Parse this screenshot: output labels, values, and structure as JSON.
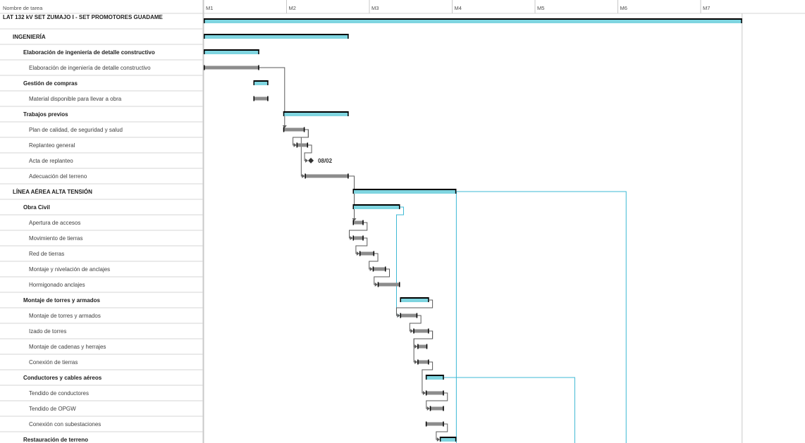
{
  "chart_data": {
    "type": "gantt",
    "task_column_header": "Nombre de tarea",
    "time_unit": "months",
    "time_axis": {
      "ticks": [
        "M1",
        "M2",
        "M3",
        "M4",
        "M5",
        "M6",
        "M7"
      ],
      "range": [
        0,
        6.55
      ]
    },
    "colors": {
      "summary_bar": "#000000",
      "summary_fill": "#7fd5e0",
      "task_bar": "#8c8c8c",
      "link": "#5a5a5a",
      "link_external": "#3cb8d4"
    },
    "tasks": [
      {
        "id": 0,
        "name": "LAT 132 kV SET ZUMAJO I - SET PROMOTORES GUADAME",
        "level": 0,
        "type": "summary",
        "start": 0.0,
        "end": 6.5
      },
      {
        "id": 1,
        "name": "INGENIERÍA",
        "level": 1,
        "type": "summary",
        "start": 0.0,
        "end": 1.75
      },
      {
        "id": 2,
        "name": "Elaboración de ingeniería de detalle constructivo",
        "level": 2,
        "type": "summary",
        "start": 0.0,
        "end": 0.67
      },
      {
        "id": 3,
        "name": "Elaboración de ingeniería de detalle constructivo",
        "level": 3,
        "type": "task",
        "start": 0.0,
        "end": 0.67
      },
      {
        "id": 4,
        "name": "Gestión de compras",
        "level": 2,
        "type": "summary",
        "start": 0.6,
        "end": 0.78
      },
      {
        "id": 5,
        "name": "Material disponible para llevar a obra",
        "level": 3,
        "type": "task",
        "start": 0.6,
        "end": 0.78
      },
      {
        "id": 6,
        "name": "Trabajos previos",
        "level": 2,
        "type": "summary",
        "start": 0.96,
        "end": 1.75
      },
      {
        "id": 7,
        "name": "Plan de calidad, de seguridad y salud",
        "level": 3,
        "type": "task",
        "start": 0.96,
        "end": 1.22
      },
      {
        "id": 8,
        "name": "Replanteo general",
        "level": 3,
        "type": "task",
        "start": 1.12,
        "end": 1.26
      },
      {
        "id": 9,
        "name": "Acta de replanteo",
        "level": 3,
        "type": "milestone",
        "start": 1.26,
        "end": 1.26,
        "label": "08/02"
      },
      {
        "id": 10,
        "name": "Adecuación del terreno",
        "level": 3,
        "type": "task",
        "start": 1.22,
        "end": 1.75
      },
      {
        "id": 11,
        "name": "LÍNEA AÉREA ALTA TENSIÓN",
        "level": 1,
        "type": "summary",
        "start": 1.8,
        "end": 3.05
      },
      {
        "id": 12,
        "name": "Obra Civil",
        "level": 2,
        "type": "summary",
        "start": 1.8,
        "end": 2.37
      },
      {
        "id": 13,
        "name": "Apertura de accesos",
        "level": 3,
        "type": "task",
        "start": 1.8,
        "end": 1.93
      },
      {
        "id": 14,
        "name": "Movimiento de tierras",
        "level": 3,
        "type": "task",
        "start": 1.8,
        "end": 1.93
      },
      {
        "id": 15,
        "name": "Red de tierras",
        "level": 3,
        "type": "task",
        "start": 1.88,
        "end": 2.06
      },
      {
        "id": 16,
        "name": "Montaje y nivelación de anclajes",
        "level": 3,
        "type": "task",
        "start": 2.04,
        "end": 2.2
      },
      {
        "id": 17,
        "name": "Hormigonado anclajes",
        "level": 3,
        "type": "task",
        "start": 2.1,
        "end": 2.37
      },
      {
        "id": 18,
        "name": "Montaje de torres y armados",
        "level": 2,
        "type": "summary",
        "start": 2.37,
        "end": 2.72
      },
      {
        "id": 19,
        "name": "Montaje de torres y armados",
        "level": 3,
        "type": "task",
        "start": 2.37,
        "end": 2.58
      },
      {
        "id": 20,
        "name": "Izado de torres",
        "level": 3,
        "type": "task",
        "start": 2.53,
        "end": 2.72
      },
      {
        "id": 21,
        "name": "Montaje de cadenas y herrajes",
        "level": 3,
        "type": "task",
        "start": 2.58,
        "end": 2.7
      },
      {
        "id": 22,
        "name": "Conexión de tierras",
        "level": 3,
        "type": "task",
        "start": 2.58,
        "end": 2.72
      },
      {
        "id": 23,
        "name": "Conductores y cables aéreos",
        "level": 2,
        "type": "summary",
        "start": 2.68,
        "end": 2.9
      },
      {
        "id": 24,
        "name": "Tendido de conductores",
        "level": 3,
        "type": "task",
        "start": 2.68,
        "end": 2.9
      },
      {
        "id": 25,
        "name": "Tendido de OPGW",
        "level": 3,
        "type": "task",
        "start": 2.73,
        "end": 2.9
      },
      {
        "id": 26,
        "name": "Conexión con subestaciones",
        "level": 3,
        "type": "task",
        "start": 2.68,
        "end": 2.9
      },
      {
        "id": 27,
        "name": "Restauración de terreno",
        "level": 2,
        "type": "summary",
        "start": 2.85,
        "end": 3.05
      }
    ],
    "links": [
      {
        "from": 3,
        "to": 7,
        "style": "link"
      },
      {
        "from": 7,
        "to": 8,
        "style": "link"
      },
      {
        "from": 8,
        "to": 9,
        "style": "link"
      },
      {
        "from": 7,
        "to": 10,
        "style": "link"
      },
      {
        "from": 10,
        "to": 13,
        "style": "link"
      },
      {
        "from": 13,
        "to": 14,
        "style": "link"
      },
      {
        "from": 14,
        "to": 15,
        "style": "link"
      },
      {
        "from": 15,
        "to": 16,
        "style": "link"
      },
      {
        "from": 16,
        "to": 17,
        "style": "link"
      },
      {
        "from": 12,
        "to": 19,
        "style": "link_external"
      },
      {
        "from": 18,
        "to": 19,
        "style": "link"
      },
      {
        "from": 19,
        "to": 20,
        "style": "link"
      },
      {
        "from": 20,
        "to": 21,
        "style": "link"
      },
      {
        "from": 20,
        "to": 22,
        "style": "link"
      },
      {
        "from": 22,
        "to": 24,
        "style": "link"
      },
      {
        "from": 24,
        "to": 25,
        "style": "link"
      },
      {
        "from": 26,
        "to": 27,
        "style": "link"
      }
    ],
    "vertical_connectors": [
      {
        "x": 3.05,
        "from_task": 11,
        "to_bottom": true
      },
      {
        "x": 5.1,
        "from_task": 11,
        "to_bottom": true
      },
      {
        "x": 4.48,
        "from_task": 23,
        "to_bottom": true
      }
    ]
  }
}
